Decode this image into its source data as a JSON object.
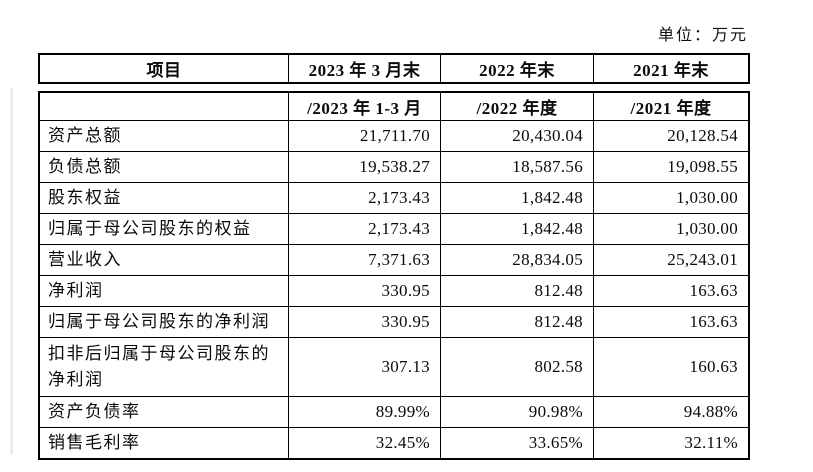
{
  "unit_label": "单位：万元",
  "table": {
    "header": [
      "项目",
      "2023 年 3 月末",
      "2022 年末",
      "2021 年末"
    ],
    "subheader": [
      "",
      "/2023 年 1-3 月",
      "/2022 年度",
      "/2021 年度"
    ],
    "rows": [
      {
        "label": "资产总额",
        "values": [
          "21,711.70",
          "20,430.04",
          "20,128.54"
        ]
      },
      {
        "label": "负债总额",
        "values": [
          "19,538.27",
          "18,587.56",
          "19,098.55"
        ]
      },
      {
        "label": "股东权益",
        "values": [
          "2,173.43",
          "1,842.48",
          "1,030.00"
        ]
      },
      {
        "label": "归属于母公司股东的权益",
        "values": [
          "2,173.43",
          "1,842.48",
          "1,030.00"
        ]
      },
      {
        "label": "营业收入",
        "values": [
          "7,371.63",
          "28,834.05",
          "25,243.01"
        ]
      },
      {
        "label": "净利润",
        "values": [
          "330.95",
          "812.48",
          "163.63"
        ]
      },
      {
        "label": "归属于母公司股东的净利润",
        "values": [
          "330.95",
          "812.48",
          "163.63"
        ]
      },
      {
        "label": "扣非后归属于母公司股东的净利润",
        "values": [
          "307.13",
          "802.58",
          "160.63"
        ]
      },
      {
        "label": "资产负债率",
        "values": [
          "89.99%",
          "90.98%",
          "94.88%"
        ]
      },
      {
        "label": "销售毛利率",
        "values": [
          "32.45%",
          "33.65%",
          "32.11%"
        ]
      }
    ]
  }
}
